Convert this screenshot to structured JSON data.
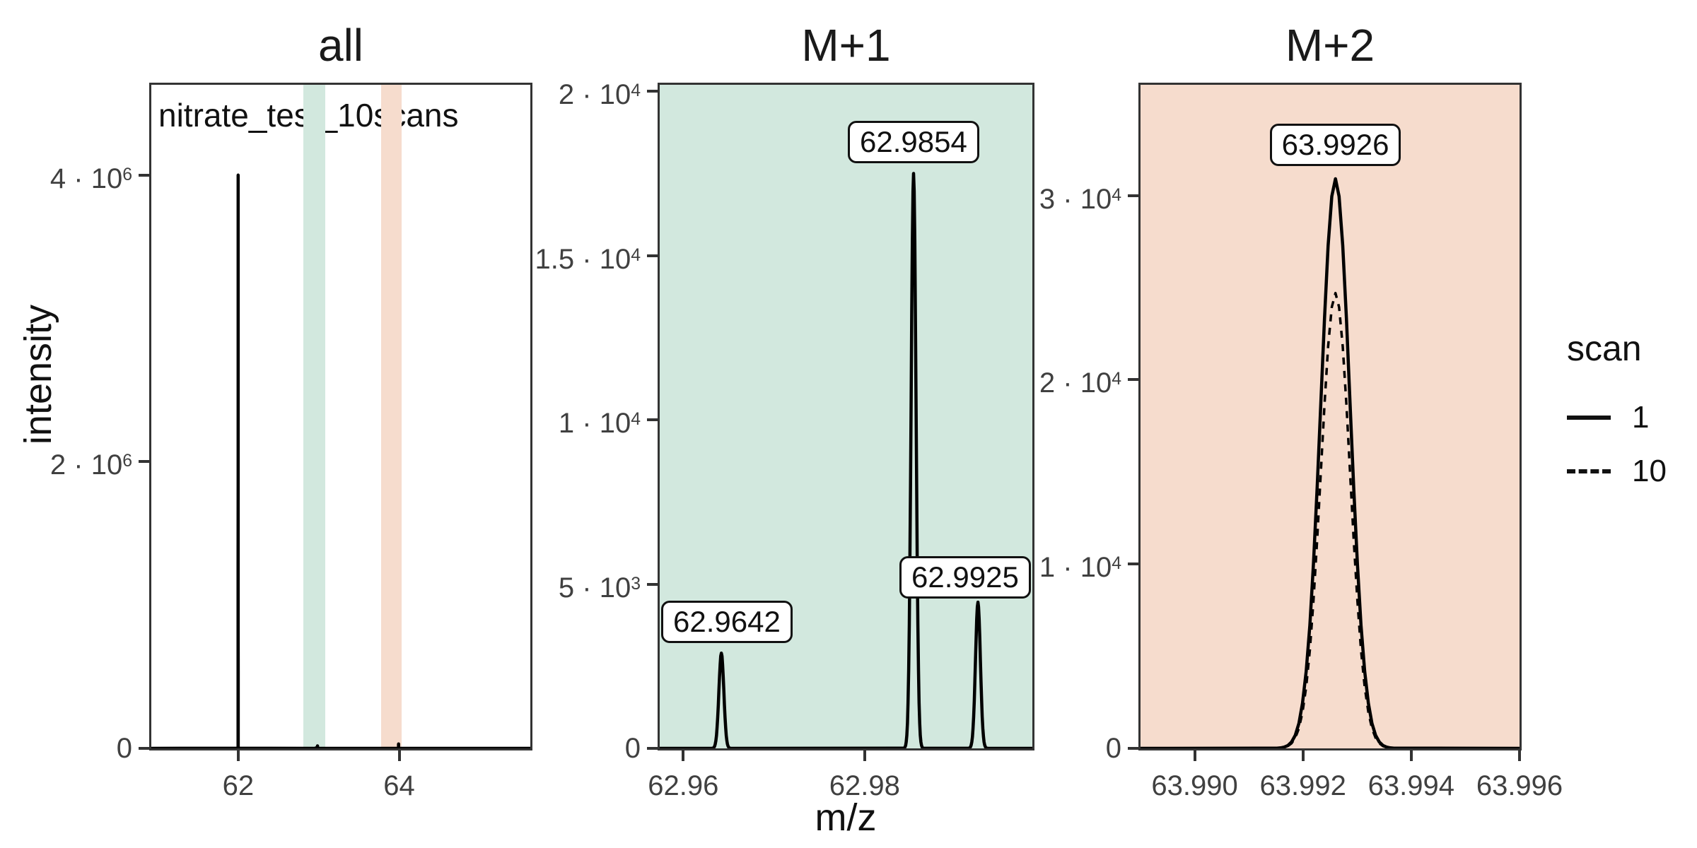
{
  "chart_data": {
    "type": "line",
    "axes": {
      "x_label": "m/z",
      "y_label": "intensity"
    },
    "legend": {
      "title": "scan",
      "position": "right",
      "items": [
        {
          "label": "1",
          "line": "solid"
        },
        {
          "label": "10",
          "line": "dashed"
        }
      ]
    },
    "series": {
      "sigma_mz": 0.00027,
      "scans": [
        {
          "name": "1",
          "dash": false,
          "peaks": [
            {
              "mz": 61.999,
              "intensity": 4000000
            },
            {
              "mz": 62.9642,
              "intensity": 2900
            },
            {
              "mz": 62.9854,
              "intensity": 17500
            },
            {
              "mz": 62.9925,
              "intensity": 4450
            },
            {
              "mz": 63.9926,
              "intensity": 30900
            }
          ]
        },
        {
          "name": "10",
          "dash": true,
          "peaks": [
            {
              "mz": 61.999,
              "intensity": 3950000
            },
            {
              "mz": 62.9642,
              "intensity": 2850
            },
            {
              "mz": 62.9854,
              "intensity": 17250
            },
            {
              "mz": 62.9925,
              "intensity": 4380
            },
            {
              "mz": 63.9926,
              "intensity": 24700
            }
          ]
        }
      ]
    },
    "panels": [
      {
        "id": "all",
        "title": "all",
        "bg": "#ffffff",
        "annotation": "nitrate_test_10scans",
        "xlim": [
          60.92,
          65.63
        ],
        "ylim": [
          0,
          4630000
        ],
        "xticks": [
          {
            "v": 62,
            "label": "62"
          },
          {
            "v": 64,
            "label": "64"
          }
        ],
        "yticks": [
          {
            "v": 0,
            "base": "0",
            "exp": ""
          },
          {
            "v": 2000000,
            "base": "2 · 10",
            "exp": "6"
          },
          {
            "v": 4000000,
            "base": "4 · 10",
            "exp": "6"
          }
        ],
        "bands": [
          {
            "name": "m1-window",
            "from": 62.81,
            "to": 63.08,
            "color": "#d2e8de"
          },
          {
            "name": "m2-window",
            "from": 63.78,
            "to": 64.03,
            "color": "#f6dccd"
          }
        ],
        "peak_labels": []
      },
      {
        "id": "m1",
        "title": "M+1",
        "bg": "#d2e8de",
        "annotation": "",
        "xlim": [
          62.9574,
          62.9985
        ],
        "ylim": [
          0,
          20200
        ],
        "xticks": [
          {
            "v": 62.96,
            "label": "62.96"
          },
          {
            "v": 62.98,
            "label": "62.98"
          }
        ],
        "yticks": [
          {
            "v": 0,
            "base": "0",
            "exp": ""
          },
          {
            "v": 5000,
            "base": "5 · 10",
            "exp": "3"
          },
          {
            "v": 10000,
            "base": "1 · 10",
            "exp": "4"
          },
          {
            "v": 15000,
            "base": "1.5 · 10",
            "exp": "4"
          },
          {
            "v": 20000,
            "base": "2 · 10",
            "exp": "4"
          }
        ],
        "bands": [],
        "peak_labels": [
          {
            "text": "62.9642",
            "x": 62.9642,
            "y": 3850
          },
          {
            "text": "62.9854",
            "x": 62.9854,
            "y": 18450
          },
          {
            "text": "62.9925",
            "x": 62.9925,
            "y": 5200
          }
        ]
      },
      {
        "id": "m2",
        "title": "M+2",
        "bg": "#f6dccd",
        "annotation": "",
        "xlim": [
          63.989,
          63.996
        ],
        "ylim": [
          0,
          36000
        ],
        "xticks": [
          {
            "v": 63.99,
            "label": "63.990"
          },
          {
            "v": 63.992,
            "label": "63.992"
          },
          {
            "v": 63.994,
            "label": "63.994"
          },
          {
            "v": 63.996,
            "label": "63.996"
          }
        ],
        "yticks": [
          {
            "v": 0,
            "base": "0",
            "exp": ""
          },
          {
            "v": 10000,
            "base": "1 · 10",
            "exp": "4"
          },
          {
            "v": 20000,
            "base": "2 · 10",
            "exp": "4"
          },
          {
            "v": 30000,
            "base": "3 · 10",
            "exp": "4"
          }
        ],
        "bands": [],
        "peak_labels": [
          {
            "text": "63.9926",
            "x": 63.9926,
            "y": 32740
          }
        ]
      }
    ]
  }
}
